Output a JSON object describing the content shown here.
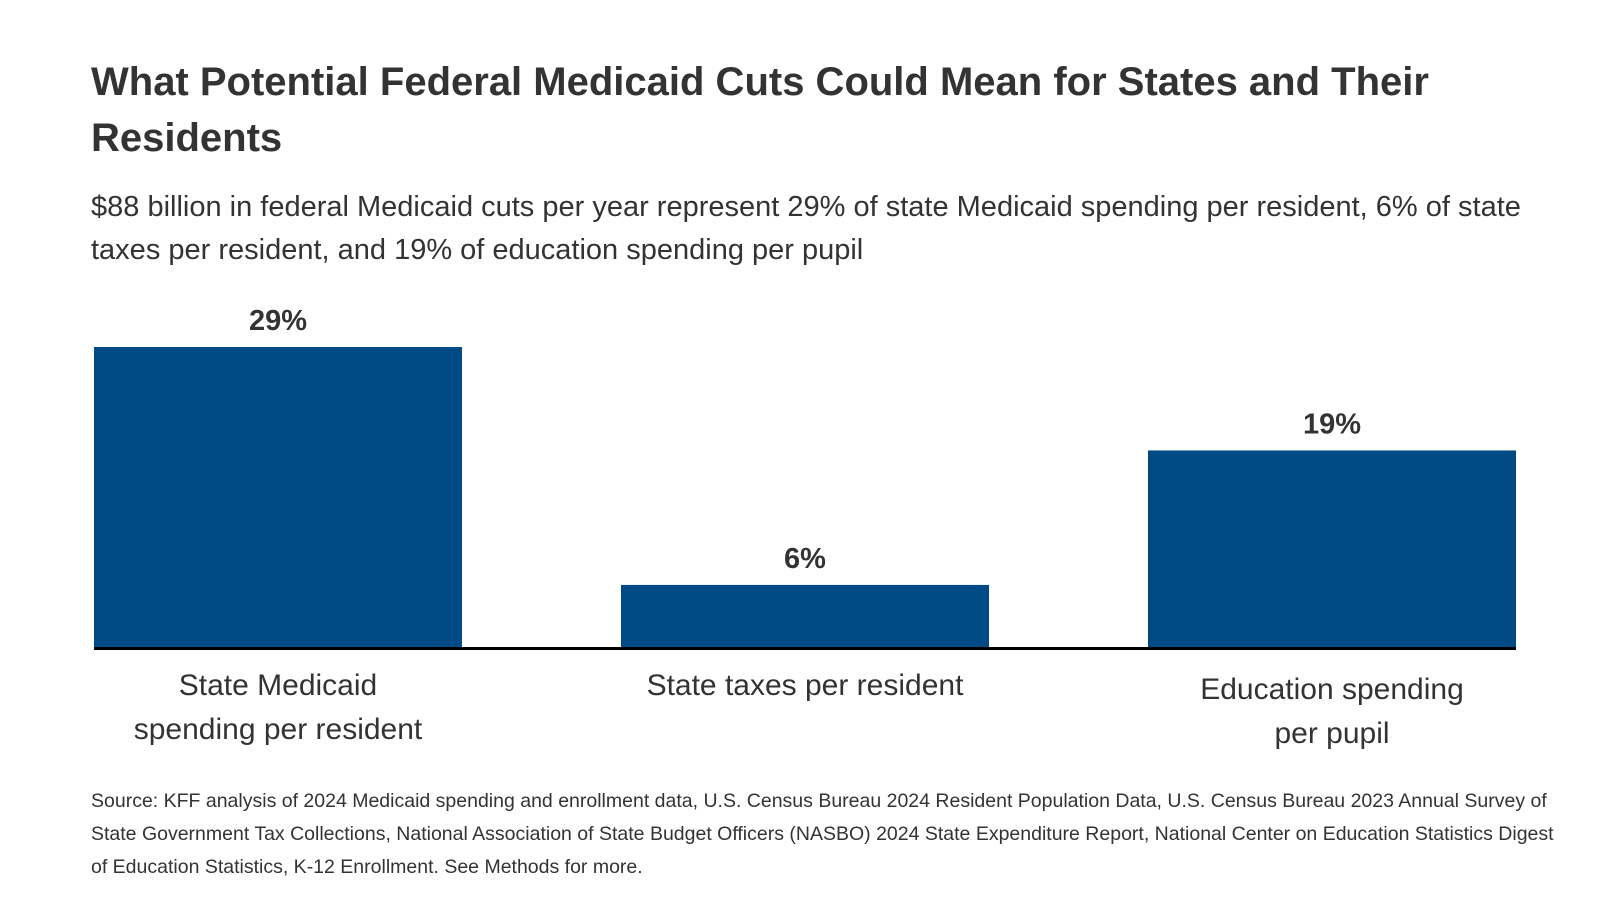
{
  "chart_data": {
    "type": "bar",
    "title": "What Potential Federal Medicaid Cuts Could Mean for States and Their Residents",
    "subtitle": "$88 billion in federal Medicaid cuts per year represent 29% of state Medicaid spending per resident, 6% of state taxes per resident, and 19% of education spending per pupil",
    "categories": [
      "State Medicaid spending per resident",
      "State taxes per resident",
      "Education spending per pupil"
    ],
    "values": [
      29,
      6,
      19
    ],
    "data_labels": [
      "29%",
      "6%",
      "19%"
    ],
    "xlabel": "",
    "ylabel": "",
    "ylim": [
      0,
      29
    ],
    "grid": false,
    "bar_color": "#004a86",
    "source": "Source: KFF analysis of 2024 Medicaid spending and enrollment data, U.S. Census Bureau 2024 Resident Population Data, U.S. Census Bureau 2023 Annual Survey of State Government Tax Collections, National Association of State Budget Officers (NASBO) 2024 State Expenditure Report, National Center on Education Statistics Digest of Education Statistics, K-12 Enrollment. See Methods for more."
  }
}
